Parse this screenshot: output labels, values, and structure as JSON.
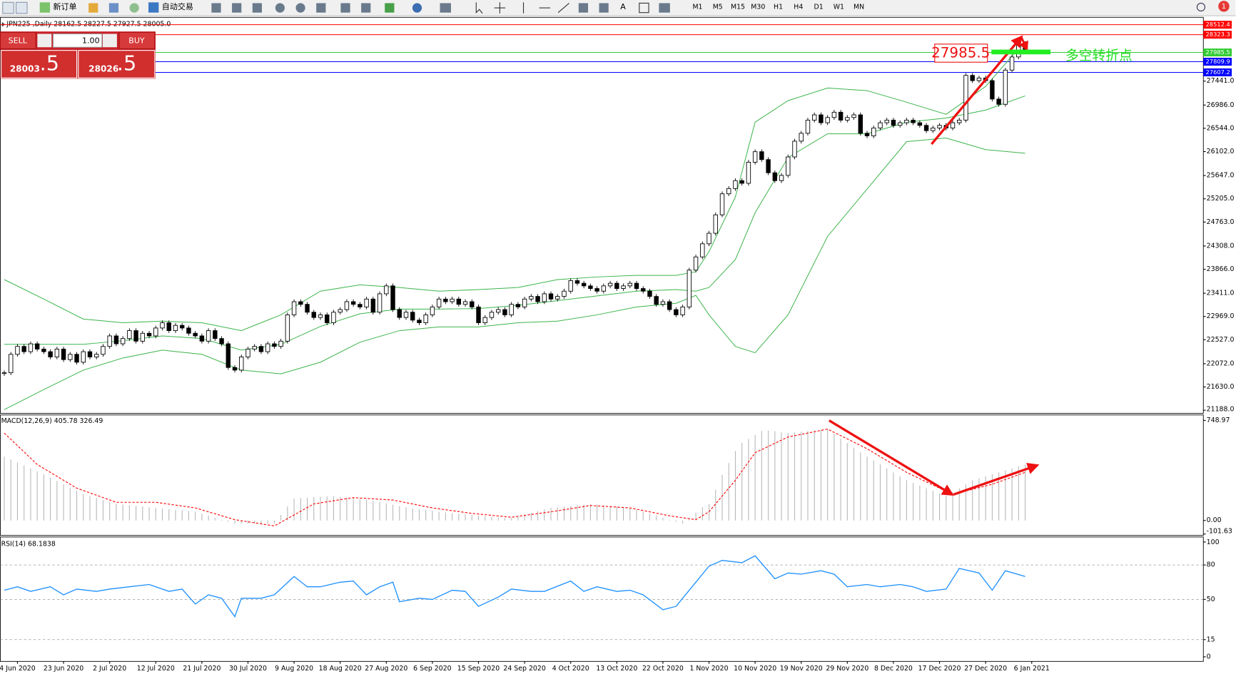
{
  "toolbar": {
    "buttons": [
      "新订单",
      "自动交易"
    ],
    "timeframes": [
      "M1",
      "M5",
      "M15",
      "M30",
      "H1",
      "H4",
      "D1",
      "W1",
      "MN"
    ],
    "notifications": 1
  },
  "trade_panel": {
    "sell_label": "SELL",
    "lots": "1.00",
    "buy_label": "BUY",
    "sell_big": "28003",
    "sell_pips": ".5",
    "buy_big": "28026",
    "buy_pips": ".5"
  },
  "chart_data": [
    {
      "type": "candlestick",
      "title": "JPN225 ,Daily  28162.5 28227.5 27927.5 28005.0",
      "close": [
        21900,
        22250,
        22400,
        22300,
        22450,
        22350,
        22300,
        22200,
        22350,
        22150,
        22250,
        22100,
        22300,
        22200,
        22250,
        22400,
        22600,
        22450,
        22550,
        22700,
        22500,
        22650,
        22600,
        22750,
        22850,
        22700,
        22800,
        22750,
        22650,
        22600,
        22500,
        22700,
        22550,
        22450,
        22000,
        21950,
        22200,
        22350,
        22400,
        22300,
        22450,
        22400,
        22500,
        23000,
        23250,
        23200,
        23050,
        22950,
        23000,
        22850,
        23050,
        23100,
        23250,
        23200,
        23150,
        23300,
        23050,
        23400,
        23550,
        23100,
        22950,
        23050,
        22900,
        22850,
        23000,
        23150,
        23300,
        23250,
        23300,
        23200,
        23250,
        23150,
        22850,
        22950,
        23050,
        23100,
        23000,
        23200,
        23150,
        23300,
        23350,
        23250,
        23400,
        23300,
        23350,
        23450,
        23650,
        23600,
        23550,
        23500,
        23450,
        23550,
        23600,
        23500,
        23550,
        23600,
        23500,
        23450,
        23350,
        23200,
        23250,
        23100,
        23000,
        23150,
        23850,
        24100,
        24350,
        24550,
        24900,
        25300,
        25400,
        25550,
        25500,
        25900,
        26100,
        25950,
        25700,
        25550,
        25650,
        26000,
        26300,
        26450,
        26700,
        26800,
        26650,
        26750,
        26850,
        26700,
        26750,
        26800,
        26450,
        26400,
        26550,
        26650,
        26700,
        26600,
        26650,
        26700,
        26650,
        26600,
        26500,
        26550,
        26600,
        26550,
        26650,
        26700,
        27550,
        27450,
        27500,
        27450,
        27100,
        27000,
        27650,
        27900,
        28150,
        28005
      ],
      "up_color": "#ffffff",
      "down_color": "#000000",
      "ylim": [
        21128,
        28653
      ],
      "yticks": [
        {
          "value": 27441,
          "label": "27441.0"
        },
        {
          "value": 26986,
          "label": "26986.0"
        },
        {
          "value": 26544,
          "label": "26544.0"
        },
        {
          "value": 26102,
          "label": "26102.0"
        },
        {
          "value": 25647,
          "label": "25647.0"
        },
        {
          "value": 25205,
          "label": "25205.0"
        },
        {
          "value": 24763,
          "label": "24763.0"
        },
        {
          "value": 24308,
          "label": "24308.0"
        },
        {
          "value": 23866,
          "label": "23866.0"
        },
        {
          "value": 23411,
          "label": "23411.0"
        },
        {
          "value": 22969,
          "label": "22969.0"
        },
        {
          "value": 22527,
          "label": "22527.0"
        },
        {
          "value": 22072,
          "label": "22072.0"
        },
        {
          "value": 21630,
          "label": "21630.0"
        },
        {
          "value": 21188,
          "label": "21188.0"
        }
      ],
      "price_levels": [
        {
          "value": 28512.4,
          "color": "#ff0000"
        },
        {
          "value": 28323.3,
          "color": "#ff0000"
        },
        {
          "value": 27985.5,
          "color": "#33cc33"
        },
        {
          "value": 27809.9,
          "color": "#0000ff"
        },
        {
          "value": 27607.2,
          "color": "#0000ff"
        }
      ],
      "xticks": [
        {
          "value": 2,
          "label": "4 Jun 2020"
        },
        {
          "value": 9,
          "label": "23 Jun 2020"
        },
        {
          "value": 16,
          "label": "2 Jul 2020"
        },
        {
          "value": 23,
          "label": "12 Jul 2020"
        },
        {
          "value": 30,
          "label": "21 Jul 2020"
        },
        {
          "value": 37,
          "label": "30 Jul 2020"
        },
        {
          "value": 44,
          "label": "9 Aug 2020"
        },
        {
          "value": 51,
          "label": "18 Aug 2020"
        },
        {
          "value": 58,
          "label": "27 Aug 2020"
        },
        {
          "value": 65,
          "label": "6 Sep 2020"
        },
        {
          "value": 72,
          "label": "15 Sep 2020"
        },
        {
          "value": 79,
          "label": "24 Sep 2020"
        },
        {
          "value": 86,
          "label": "4 Oct 2020"
        },
        {
          "value": 93,
          "label": "13 Oct 2020"
        },
        {
          "value": 100,
          "label": "22 Oct 2020"
        },
        {
          "value": 107,
          "label": "1 Nov 2020"
        },
        {
          "value": 114,
          "label": "10 Nov 2020"
        },
        {
          "value": 121,
          "label": "19 Nov 2020"
        },
        {
          "value": 128,
          "label": "29 Nov 2020"
        },
        {
          "value": 135,
          "label": "8 Dec 2020"
        },
        {
          "value": 142,
          "label": "17 Dec 2020"
        },
        {
          "value": 149,
          "label": "27 Dec 2020"
        },
        {
          "value": 156,
          "label": "6 Jan 2021"
        }
      ],
      "bands": {
        "color": "#3cb44b",
        "x": [
          0,
          6,
          12,
          18,
          24,
          30,
          36,
          42,
          48,
          54,
          60,
          66,
          72,
          78,
          84,
          90,
          96,
          102,
          105,
          107,
          111,
          114,
          119,
          125,
          131,
          137,
          143,
          149,
          155
        ],
        "upper": [
          23670,
          23300,
          22920,
          22850,
          22880,
          22850,
          22700,
          23000,
          23450,
          23570,
          23520,
          23450,
          23480,
          23520,
          23670,
          23720,
          23750,
          23750,
          23820,
          24200,
          25240,
          26660,
          27070,
          27310,
          27260,
          27040,
          26810,
          27340,
          28200
        ],
        "middle": [
          22440,
          22440,
          22440,
          22510,
          22600,
          22550,
          22330,
          22440,
          22780,
          23020,
          23110,
          23110,
          23120,
          23180,
          23270,
          23360,
          23450,
          23480,
          23450,
          23520,
          24050,
          24940,
          25990,
          26440,
          26440,
          26660,
          26740,
          26890,
          27160
        ],
        "lower": [
          21200,
          21580,
          21950,
          22180,
          22330,
          22250,
          21950,
          21880,
          22100,
          22480,
          22700,
          22770,
          22770,
          22850,
          22880,
          23000,
          23150,
          23220,
          23370,
          23000,
          22400,
          22280,
          23000,
          24490,
          25390,
          26290,
          26360,
          26140,
          26070
        ]
      },
      "annotations": {
        "price_box": 27985.5,
        "note": "多空转折点"
      }
    },
    {
      "type": "histogram",
      "title": "MACD(12,26,9) 405.78 326.49",
      "color": "#b8b8b8",
      "values": [
        478,
        456,
        434,
        412,
        390,
        368,
        345,
        320,
        296,
        271,
        246,
        222,
        197,
        182,
        168,
        153,
        138,
        124,
        119,
        114,
        109,
        104,
        99,
        94,
        89,
        84,
        79,
        75,
        70,
        65,
        50,
        35,
        20,
        5,
        -10,
        -24,
        -24,
        -24,
        -24,
        -24,
        -24,
        -24,
        40,
        105,
        165,
        168,
        171,
        174,
        177,
        180,
        181,
        176,
        171,
        166,
        161,
        156,
        148,
        138,
        128,
        118,
        108,
        98,
        90,
        84,
        78,
        72,
        66,
        60,
        55,
        50,
        45,
        40,
        35,
        31,
        27,
        23,
        19,
        18,
        31,
        44,
        57,
        70,
        83,
        94,
        99,
        104,
        109,
        114,
        119,
        124,
        119,
        114,
        109,
        104,
        99,
        94,
        80,
        65,
        50,
        35,
        20,
        6,
        -10,
        -24,
        20,
        60,
        100,
        124,
        230,
        340,
        430,
        520,
        580,
        610,
        640,
        670,
        672,
        668,
        660,
        654,
        659,
        664,
        669,
        674,
        679,
        684,
        650,
        615,
        580,
        545,
        510,
        478,
        450,
        420,
        390,
        360,
        330,
        301,
        281,
        261,
        241,
        221,
        201,
        183,
        210,
        240,
        270,
        301,
        316,
        331,
        346,
        360,
        375,
        390,
        405,
        419
      ],
      "signal": {
        "color": "#ff0000",
        "x": [
          0,
          5,
          11,
          17,
          23,
          29,
          35,
          41,
          47,
          53,
          59,
          65,
          71,
          77,
          83,
          89,
          95,
          101,
          105,
          107,
          111,
          114,
          119,
          125,
          131,
          137,
          144,
          150,
          155
        ],
        "values": [
          654,
          419,
          242,
          136,
          136,
          94,
          6,
          -41,
          124,
          171,
          153,
          94,
          53,
          24,
          65,
          112,
          94,
          35,
          6,
          65,
          301,
          507,
          625,
          684,
          537,
          360,
          195,
          271,
          360
        ]
      },
      "ylim": [
        -112,
        784
      ],
      "yticks": [
        748.97,
        {
          "value": 0,
          "label": "0.00"
        },
        -101.63
      ]
    },
    {
      "type": "line",
      "title": "RSI(14) 68.1838",
      "color": "#1e90ff",
      "x": [
        0,
        2,
        4,
        7,
        9,
        11,
        14,
        16,
        19,
        22,
        25,
        27,
        29,
        31,
        33,
        35,
        36,
        39,
        41,
        44,
        46,
        48,
        51,
        53,
        55,
        57,
        59,
        60,
        63,
        65,
        68,
        70,
        72,
        75,
        77,
        80,
        82,
        86,
        88,
        90,
        93,
        95,
        97,
        100,
        102,
        105,
        107,
        109,
        112,
        114,
        117,
        119,
        121,
        124,
        126,
        128,
        131,
        133,
        136,
        138,
        140,
        143,
        145,
        148,
        150,
        152,
        155
      ],
      "values": [
        58,
        61,
        57,
        61,
        54,
        59,
        57,
        59,
        61,
        63,
        57,
        59,
        46,
        54,
        51,
        35,
        51,
        51,
        54,
        70,
        61,
        61,
        65,
        66,
        54,
        61,
        65,
        48,
        51,
        50,
        58,
        57,
        44,
        52,
        59,
        57,
        57,
        66,
        57,
        61,
        57,
        58,
        54,
        41,
        44,
        65,
        79,
        84,
        82,
        88,
        68,
        73,
        72,
        75,
        72,
        61,
        63,
        61,
        63,
        61,
        57,
        59,
        77,
        73,
        58,
        75,
        70
      ],
      "ylim": [
        -4,
        103
      ],
      "yticks": [
        100,
        80,
        50,
        15,
        0
      ]
    }
  ]
}
